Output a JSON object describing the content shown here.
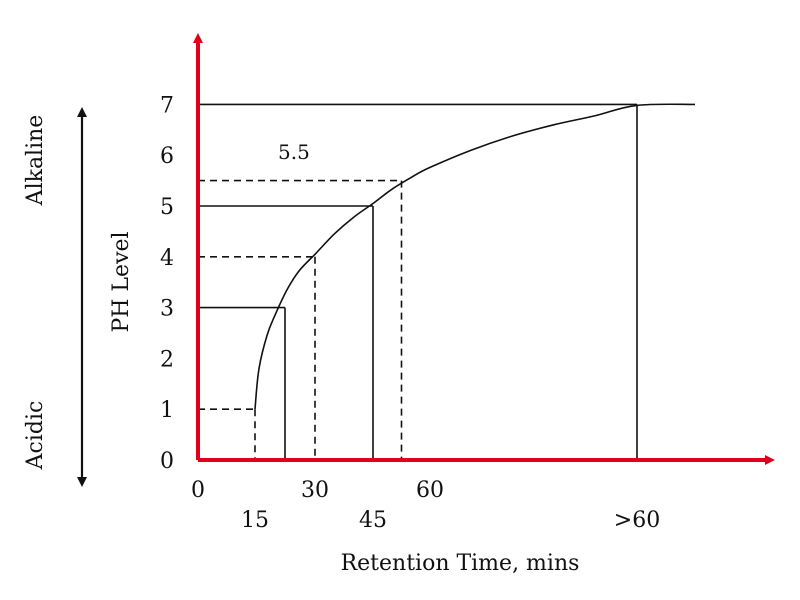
{
  "chart_data": {
    "type": "line",
    "title": "",
    "xlabel": "Retention Time, mins",
    "ylabel": "PH Level",
    "ylim": [
      0,
      7
    ],
    "y_ticks": [
      "0",
      "1",
      "2",
      "3",
      "4",
      "5",
      "6",
      "7"
    ],
    "x_tick_labels": [
      {
        "label": "0",
        "x": 0,
        "row": 1
      },
      {
        "label": "15",
        "x": 15,
        "row": 2
      },
      {
        "label": "30",
        "x": 30,
        "row": 1
      },
      {
        "label": "45",
        "x": 45,
        "row": 2
      },
      {
        "label": "60",
        "x": 60,
        "row": 1
      },
      {
        "label": ">60",
        "x": 110,
        "row": 2
      }
    ],
    "curve": {
      "x": [
        15,
        16,
        18,
        20,
        23,
        26,
        30,
        35,
        40,
        45,
        50,
        55,
        60,
        70,
        80,
        90,
        100,
        110,
        118
      ],
      "y": [
        1.0,
        1.8,
        2.45,
        2.85,
        3.35,
        3.72,
        4.05,
        4.45,
        4.78,
        5.05,
        5.33,
        5.56,
        5.76,
        6.1,
        6.38,
        6.6,
        6.78,
        6.98,
        7.0
      ]
    },
    "reference_points": [
      {
        "x": 15,
        "y": 1,
        "style": "dashed"
      },
      {
        "x": 22.5,
        "y": 3,
        "style": "solid"
      },
      {
        "x": 30,
        "y": 4,
        "style": "dashed"
      },
      {
        "x": 45,
        "y": 5,
        "style": "solid"
      },
      {
        "x": 52.5,
        "y": 5.5,
        "style": "dashed"
      },
      {
        "x": 110,
        "y": 7,
        "style": "solid"
      }
    ],
    "annotations": [
      {
        "text": "5.5",
        "x": 20,
        "y": 6.0
      }
    ],
    "side_labels": {
      "top": "Alkaline",
      "bottom": "Acidic"
    },
    "colors": {
      "axes": "#e0001b",
      "lines": "#111111",
      "background": "#ffffff"
    }
  }
}
